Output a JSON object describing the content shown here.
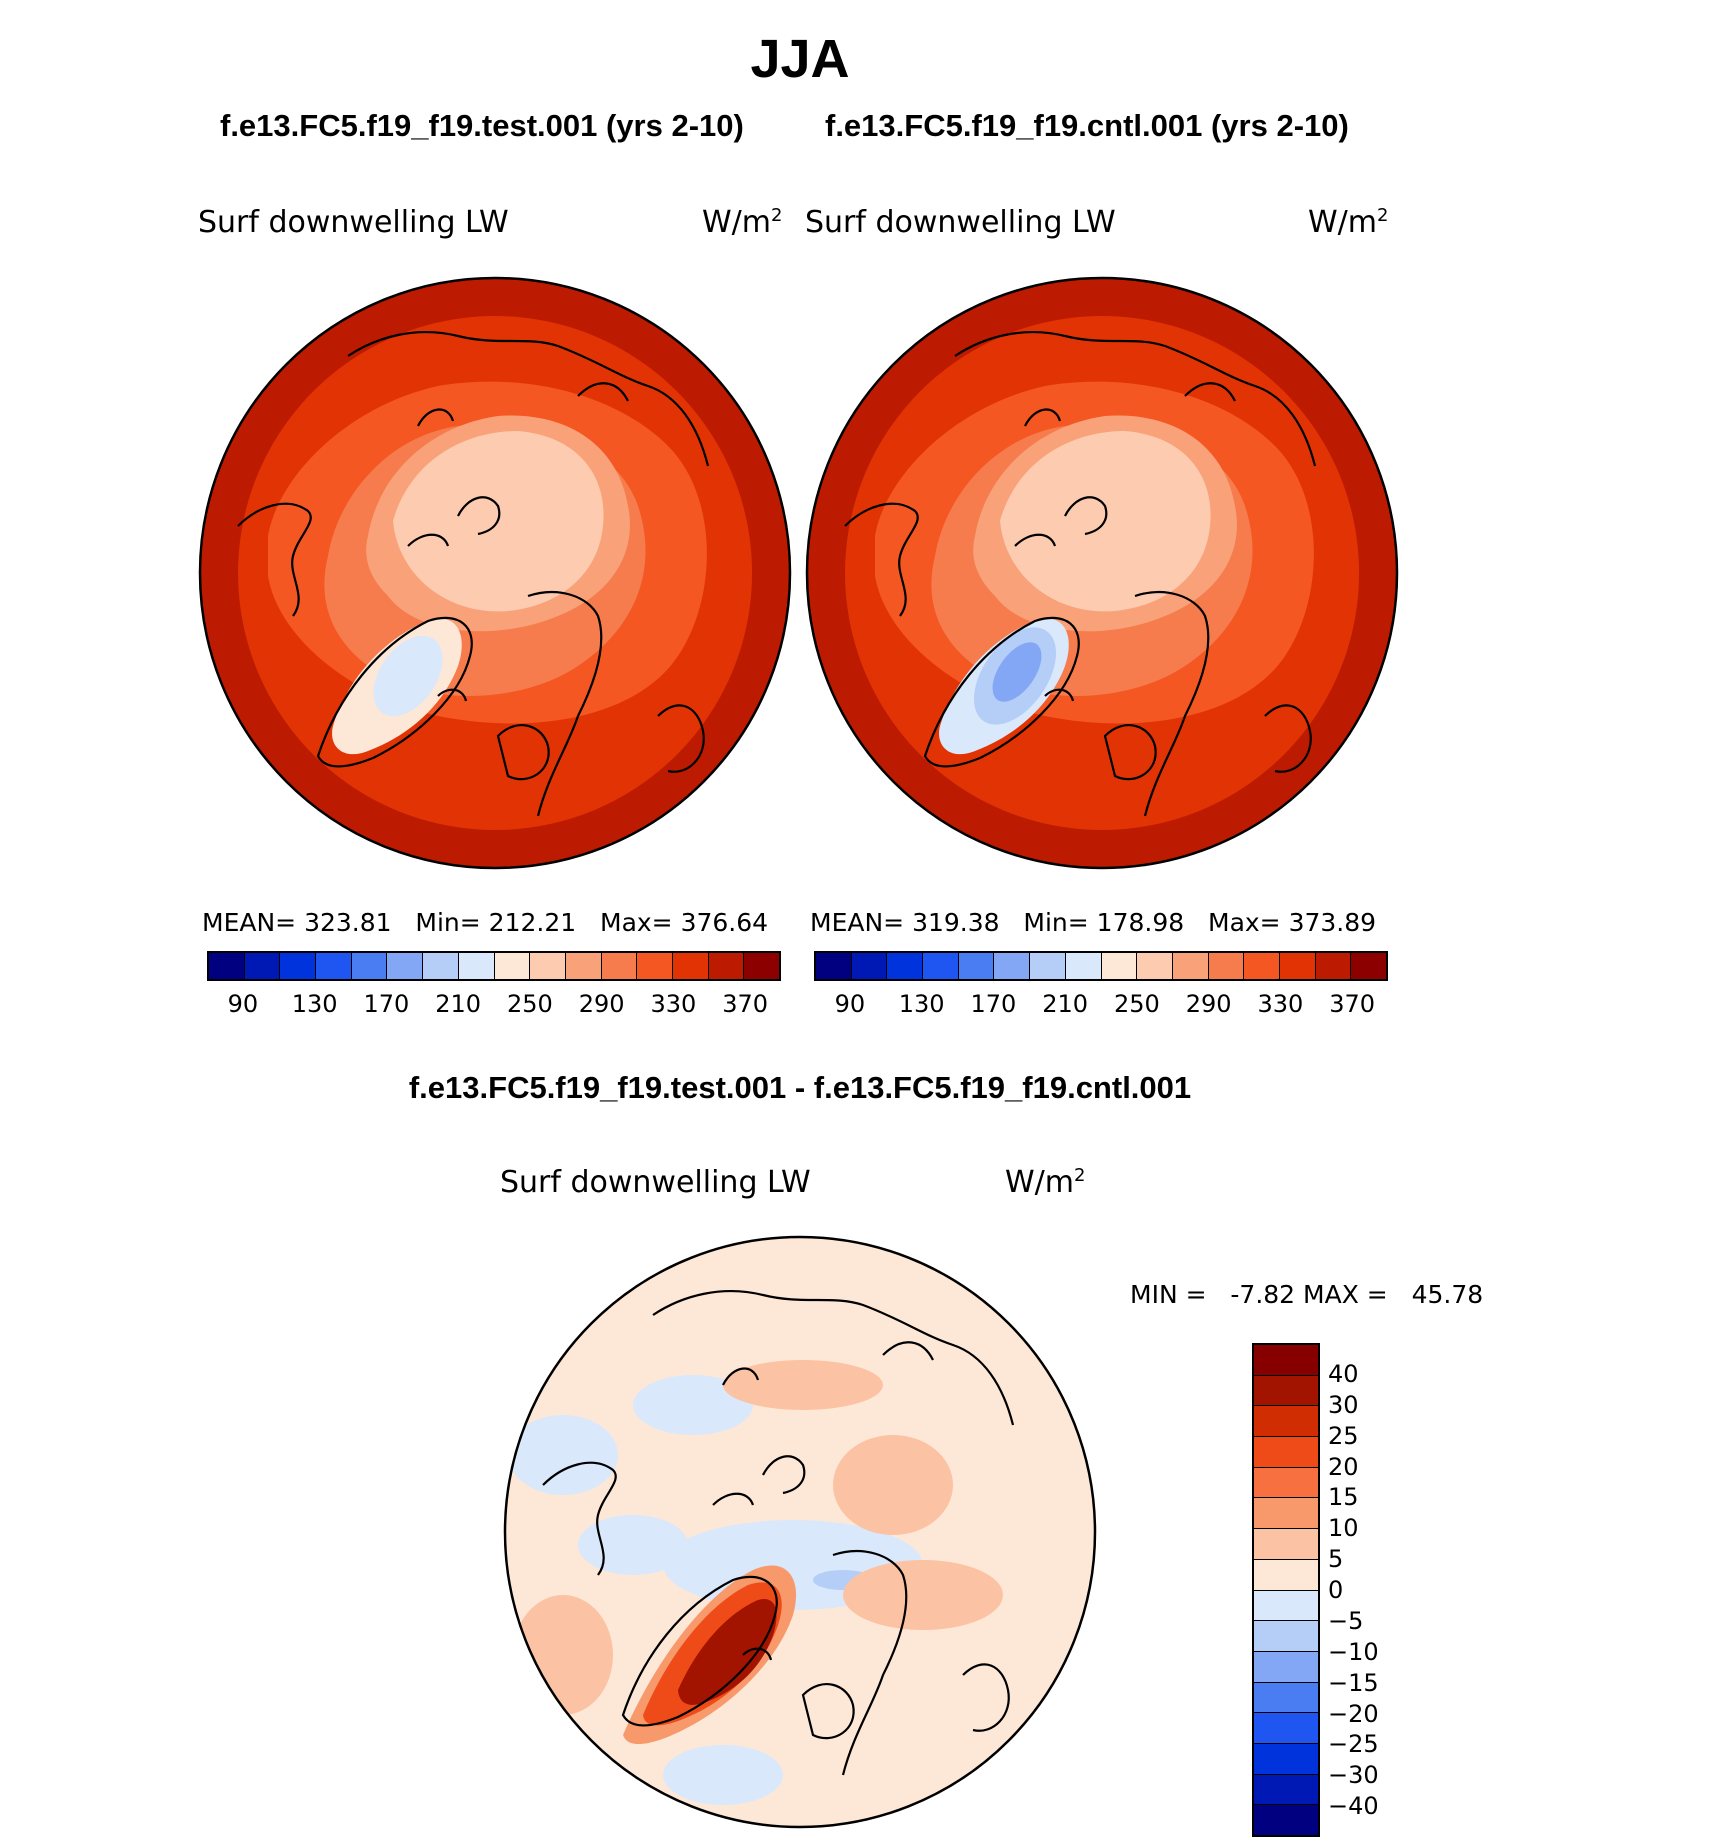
{
  "title": "JJA",
  "colors": {
    "abs": [
      "#000080",
      "#0019b4",
      "#0033dc",
      "#1f55f0",
      "#4a7df2",
      "#84a7f5",
      "#b5cef8",
      "#d9e8fb",
      "#fde8d8",
      "#fccbb0",
      "#f9a27a",
      "#f67c4d",
      "#f45722",
      "#e23305",
      "#bd1b01",
      "#8c0000"
    ],
    "diff": [
      "#000080",
      "#0019b4",
      "#0033dc",
      "#1f55f0",
      "#4a7df2",
      "#84a7f5",
      "#b5cef8",
      "#d9e8fb",
      "#fde8d8",
      "#fbc3a3",
      "#f8996b",
      "#f67040",
      "#ef4b18",
      "#d12d02",
      "#a21300",
      "#860000"
    ],
    "outline": "#000000"
  },
  "chart_data": [
    {
      "type": "map",
      "id": "test",
      "case_title": "f.e13.FC5.f19_f19.test.001 (yrs 2-10)",
      "variable": "Surf downwelling LW",
      "units": "W/m",
      "units_exp": "2",
      "stats": {
        "mean_label": "MEAN=",
        "mean": "323.81",
        "min_label": "Min=",
        "min": "212.21",
        "max_label": "Max=",
        "max": "376.64"
      },
      "projection": "north polar stereographic",
      "colorbar": {
        "orientation": "horizontal",
        "levels": [
          90,
          110,
          130,
          150,
          170,
          190,
          210,
          230,
          250,
          270,
          290,
          310,
          330,
          350,
          370
        ],
        "tick_labels": [
          "90",
          "130",
          "170",
          "210",
          "250",
          "290",
          "330",
          "370"
        ]
      }
    },
    {
      "type": "map",
      "id": "cntl",
      "case_title": "f.e13.FC5.f19_f19.cntl.001 (yrs 2-10)",
      "variable": "Surf downwelling LW",
      "units": "W/m",
      "units_exp": "2",
      "stats": {
        "mean_label": "MEAN=",
        "mean": "319.38",
        "min_label": "Min=",
        "min": "178.98",
        "max_label": "Max=",
        "max": "373.89"
      },
      "projection": "north polar stereographic",
      "colorbar": {
        "orientation": "horizontal",
        "levels": [
          90,
          110,
          130,
          150,
          170,
          190,
          210,
          230,
          250,
          270,
          290,
          310,
          330,
          350,
          370
        ],
        "tick_labels": [
          "90",
          "130",
          "170",
          "210",
          "250",
          "290",
          "330",
          "370"
        ]
      }
    },
    {
      "type": "map",
      "id": "diff",
      "case_title": "f.e13.FC5.f19_f19.test.001 - f.e13.FC5.f19_f19.cntl.001",
      "variable": "Surf downwelling LW",
      "units": "W/m",
      "units_exp": "2",
      "stats": {
        "min_label": "MIN =",
        "min": "-7.82",
        "max_label": "MAX =",
        "max": "45.78"
      },
      "projection": "north polar stereographic",
      "colorbar": {
        "orientation": "vertical",
        "levels": [
          40,
          30,
          25,
          20,
          15,
          10,
          5,
          0,
          -5,
          -10,
          -15,
          -20,
          -25,
          -30,
          -40
        ],
        "tick_labels": [
          "40",
          "30",
          "25",
          "20",
          "15",
          "10",
          "5",
          "0",
          "−5",
          "−10",
          "−15",
          "−20",
          "−25",
          "−30",
          "−40"
        ]
      }
    }
  ]
}
